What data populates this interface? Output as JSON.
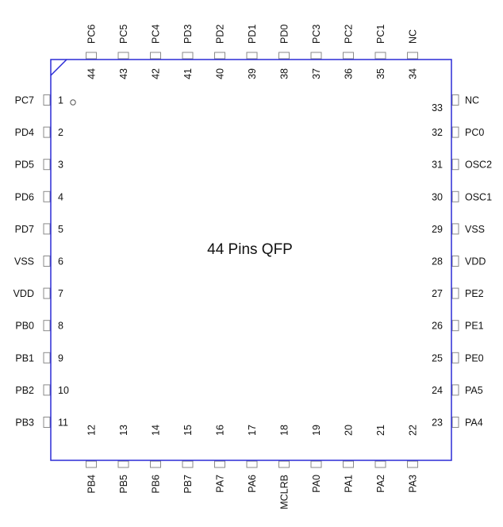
{
  "title": "44 Pins  QFP",
  "colors": {
    "body_outline": "#2b2bd6",
    "pin_pad": "#8a8a8a",
    "text": "#111111"
  },
  "pin1_marker": "pin-1-indicator-circle",
  "pins": {
    "left": [
      {
        "num": "1",
        "name": "PC7"
      },
      {
        "num": "2",
        "name": "PD4"
      },
      {
        "num": "3",
        "name": "PD5"
      },
      {
        "num": "4",
        "name": "PD6"
      },
      {
        "num": "5",
        "name": "PD7"
      },
      {
        "num": "6",
        "name": "VSS"
      },
      {
        "num": "7",
        "name": "VDD"
      },
      {
        "num": "8",
        "name": "PB0"
      },
      {
        "num": "9",
        "name": "PB1"
      },
      {
        "num": "10",
        "name": "PB2"
      },
      {
        "num": "11",
        "name": "PB3"
      }
    ],
    "bottom": [
      {
        "num": "12",
        "name": "PB4"
      },
      {
        "num": "13",
        "name": "PB5"
      },
      {
        "num": "14",
        "name": "PB6"
      },
      {
        "num": "15",
        "name": "PB7"
      },
      {
        "num": "16",
        "name": "PA7"
      },
      {
        "num": "17",
        "name": "PA6"
      },
      {
        "num": "18",
        "name": "MCLRB"
      },
      {
        "num": "19",
        "name": "PA0"
      },
      {
        "num": "20",
        "name": "PA1"
      },
      {
        "num": "21",
        "name": "PA2"
      },
      {
        "num": "22",
        "name": "PA3"
      }
    ],
    "right": [
      {
        "num": "33",
        "name": "NC"
      },
      {
        "num": "32",
        "name": "PC0"
      },
      {
        "num": "31",
        "name": "OSC2"
      },
      {
        "num": "30",
        "name": "OSC1"
      },
      {
        "num": "29",
        "name": "VSS"
      },
      {
        "num": "28",
        "name": "VDD"
      },
      {
        "num": "27",
        "name": "PE2"
      },
      {
        "num": "26",
        "name": "PE1"
      },
      {
        "num": "25",
        "name": "PE0"
      },
      {
        "num": "24",
        "name": "PA5"
      },
      {
        "num": "23",
        "name": "PA4"
      }
    ],
    "top": [
      {
        "num": "44",
        "name": "PC6"
      },
      {
        "num": "43",
        "name": "PC5"
      },
      {
        "num": "42",
        "name": "PC4"
      },
      {
        "num": "41",
        "name": "PD3"
      },
      {
        "num": "40",
        "name": "PD2"
      },
      {
        "num": "39",
        "name": "PD1"
      },
      {
        "num": "38",
        "name": "PD0"
      },
      {
        "num": "37",
        "name": "PC3"
      },
      {
        "num": "36",
        "name": "PC2"
      },
      {
        "num": "35",
        "name": "PC1"
      },
      {
        "num": "34",
        "name": "NC"
      }
    ]
  }
}
